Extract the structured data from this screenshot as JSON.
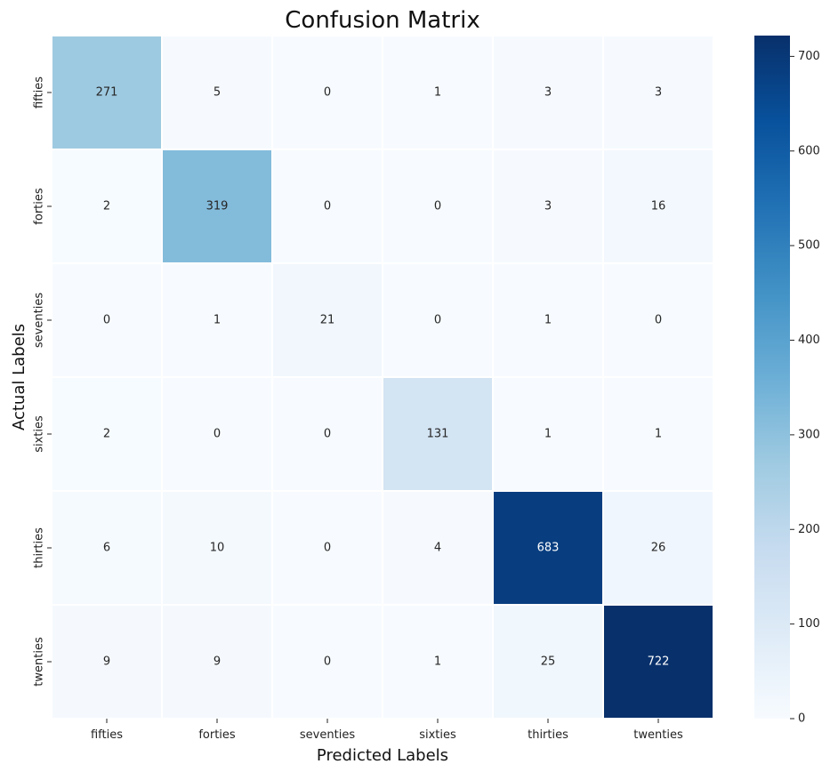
{
  "chart_data": {
    "type": "heatmap",
    "title": "Confusion Matrix",
    "xlabel": "Predicted Labels",
    "ylabel": "Actual Labels",
    "x_categories": [
      "fifties",
      "forties",
      "seventies",
      "sixties",
      "thirties",
      "twenties"
    ],
    "y_categories": [
      "fifties",
      "forties",
      "seventies",
      "sixties",
      "thirties",
      "twenties"
    ],
    "matrix": [
      [
        271,
        5,
        0,
        1,
        3,
        3
      ],
      [
        2,
        319,
        0,
        0,
        3,
        16
      ],
      [
        0,
        1,
        21,
        0,
        1,
        0
      ],
      [
        2,
        0,
        0,
        131,
        1,
        1
      ],
      [
        6,
        10,
        0,
        4,
        683,
        26
      ],
      [
        9,
        9,
        0,
        1,
        25,
        722
      ]
    ],
    "colormap": "Blues",
    "vmin": 0,
    "vmax": 722,
    "colorbar_ticks": [
      0,
      100,
      200,
      300,
      400,
      500,
      600,
      700
    ],
    "colors": {
      "text_dark": "#262626",
      "text_light": "#ffffff",
      "grid_line": "#ffffff"
    }
  }
}
